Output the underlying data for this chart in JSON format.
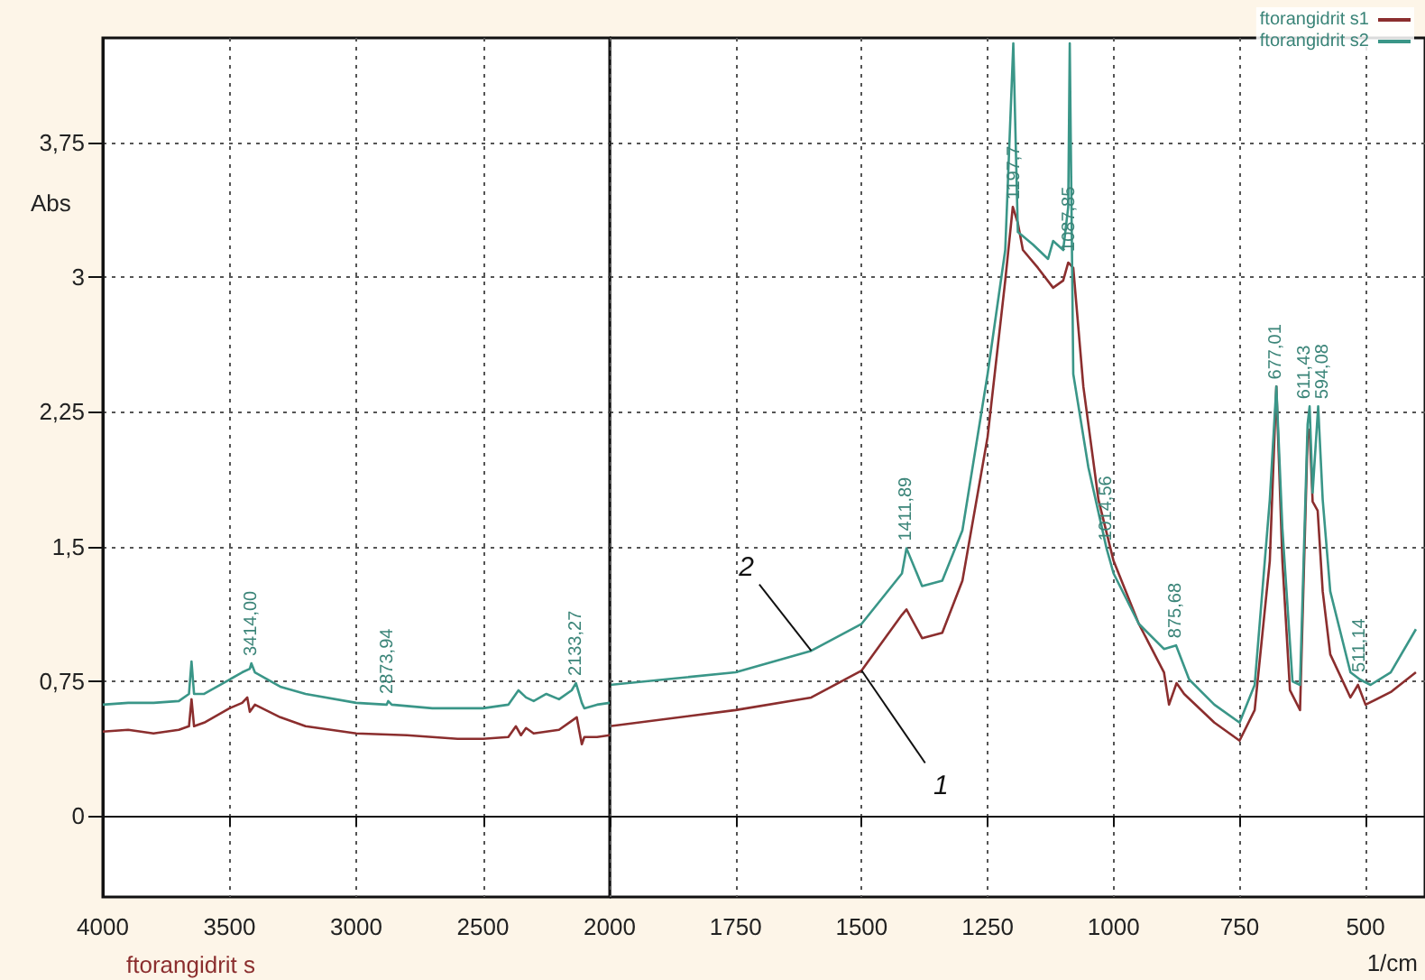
{
  "chart_data": [
    {
      "type": "line",
      "ylabel": "Abs",
      "xlim": [
        4000,
        2000
      ],
      "xticks": [
        4000,
        3500,
        3000,
        2500,
        2000
      ],
      "ylim": [
        -0.45,
        4.33
      ],
      "yticks": [
        {
          "value": 0,
          "label": "0"
        },
        {
          "value": 0.75,
          "label": "0,75"
        },
        {
          "value": 1.5,
          "label": "1,5"
        },
        {
          "value": 2.25,
          "label": "2,25"
        },
        {
          "value": 3,
          "label": "3"
        },
        {
          "value": 3.75,
          "label": "3,75"
        }
      ],
      "grid": true,
      "series": [
        {
          "color": "#8b2e2e",
          "x": [
            4000,
            3900,
            3800,
            3700,
            3660,
            3650,
            3640,
            3600,
            3500,
            3450,
            3430,
            3420,
            3400,
            3300,
            3200,
            3000,
            2800,
            2600,
            2500,
            2400,
            2370,
            2350,
            2330,
            2300,
            2250,
            2200,
            2150,
            2130,
            2110,
            2100,
            2050,
            2000
          ],
          "values": [
            0.47,
            0.48,
            0.46,
            0.48,
            0.5,
            0.65,
            0.5,
            0.52,
            0.6,
            0.63,
            0.66,
            0.58,
            0.62,
            0.55,
            0.5,
            0.46,
            0.45,
            0.43,
            0.43,
            0.44,
            0.5,
            0.45,
            0.49,
            0.46,
            0.47,
            0.48,
            0.53,
            0.55,
            0.4,
            0.44,
            0.44,
            0.45
          ]
        },
        {
          "color": "#3a9688",
          "x": [
            4000,
            3900,
            3800,
            3700,
            3660,
            3650,
            3640,
            3600,
            3500,
            3450,
            3420,
            3414,
            3400,
            3300,
            3250,
            3200,
            3000,
            2880,
            2874,
            2860,
            2700,
            2500,
            2400,
            2360,
            2330,
            2300,
            2250,
            2200,
            2150,
            2133,
            2110,
            2100,
            2050,
            2000
          ],
          "values": [
            0.62,
            0.63,
            0.63,
            0.64,
            0.68,
            0.86,
            0.68,
            0.68,
            0.76,
            0.8,
            0.82,
            0.85,
            0.8,
            0.72,
            0.7,
            0.68,
            0.63,
            0.62,
            0.64,
            0.62,
            0.6,
            0.6,
            0.62,
            0.7,
            0.66,
            0.64,
            0.68,
            0.65,
            0.7,
            0.74,
            0.63,
            0.6,
            0.62,
            0.63
          ]
        }
      ],
      "annotations": [
        {
          "text": "3414,00",
          "x": 3414,
          "y": 0.85
        },
        {
          "text": "2873,94",
          "x": 2874,
          "y": 0.64
        },
        {
          "text": "2133,27",
          "x": 2133,
          "y": 0.74
        },
        "ftorangidrit s"
      ]
    },
    {
      "type": "line",
      "xlabel": "1/cm",
      "xlim": [
        2000,
        382
      ],
      "xticks": [
        1750,
        1500,
        1250,
        1000,
        750,
        500
      ],
      "ylim": [
        -0.45,
        4.33
      ],
      "yticks": [
        {
          "value": 0,
          "label": null
        },
        {
          "value": 0.75,
          "label": null
        },
        {
          "value": 1.5,
          "label": null
        },
        {
          "value": 2.25,
          "label": null
        },
        {
          "value": 3,
          "label": null
        },
        {
          "value": 3.75,
          "label": null
        }
      ],
      "grid": true,
      "tick_labels": "x",
      "legend": "top right",
      "series": [
        {
          "name": "ftorangidrit s1",
          "color": "#8b2e2e",
          "x": [
            2000,
            1750,
            1600,
            1500,
            1420,
            1411,
            1380,
            1340,
            1300,
            1250,
            1215,
            1200,
            1190,
            1180,
            1150,
            1120,
            1100,
            1090,
            1080,
            1060,
            1030,
            1000,
            950,
            900,
            890,
            875,
            860,
            800,
            750,
            720,
            690,
            677,
            665,
            650,
            630,
            615,
            611,
            605,
            595,
            585,
            570,
            530,
            515,
            500,
            450,
            400
          ],
          "values": [
            0.5,
            0.59,
            0.66,
            0.81,
            1.12,
            1.15,
            0.99,
            1.02,
            1.31,
            2.11,
            2.98,
            3.39,
            3.3,
            3.15,
            3.05,
            2.94,
            2.98,
            3.08,
            3.05,
            2.39,
            1.76,
            1.42,
            1.07,
            0.8,
            0.62,
            0.74,
            0.68,
            0.52,
            0.42,
            0.59,
            1.42,
            2.39,
            1.42,
            0.7,
            0.59,
            2.11,
            2.15,
            1.75,
            1.7,
            1.25,
            0.9,
            0.66,
            0.73,
            0.62,
            0.69,
            0.8
          ]
        },
        {
          "name": "ftorangidrit s2",
          "color": "#3a9688",
          "x": [
            2000,
            1750,
            1600,
            1500,
            1420,
            1411,
            1380,
            1340,
            1300,
            1250,
            1215,
            1199,
            1190,
            1160,
            1130,
            1120,
            1100,
            1090,
            1087,
            1080,
            1050,
            1014,
            1000,
            950,
            900,
            876,
            850,
            800,
            750,
            720,
            690,
            677,
            665,
            645,
            630,
            615,
            611,
            605,
            594,
            585,
            570,
            530,
            511,
            490,
            450,
            400
          ],
          "values": [
            0.73,
            0.8,
            0.92,
            1.07,
            1.35,
            1.49,
            1.28,
            1.31,
            1.59,
            2.46,
            3.15,
            4.3,
            3.25,
            3.18,
            3.1,
            3.2,
            3.15,
            3.39,
            4.3,
            2.46,
            1.94,
            1.49,
            1.35,
            1.07,
            0.93,
            0.95,
            0.76,
            0.62,
            0.52,
            0.73,
            1.76,
            2.39,
            1.6,
            0.75,
            0.73,
            2.18,
            2.28,
            1.8,
            2.28,
            1.76,
            1.25,
            0.8,
            0.76,
            0.73,
            0.8,
            1.04
          ]
        }
      ],
      "annotations": [
        {
          "text": "2",
          "x": 1600,
          "y": 0.92
        },
        {
          "text": "1",
          "x": 1500,
          "y": 0.81
        },
        {
          "text": "1411,89",
          "x": 1411,
          "y": 1.49
        },
        {
          "text": "1197,7",
          "x": 1197,
          "y": 3.39
        },
        {
          "text": "1087,85",
          "x": 1087,
          "y": 3.1
        },
        {
          "text": "1014,56",
          "x": 1014,
          "y": 1.49
        },
        {
          "text": "875,68",
          "x": 876,
          "y": 0.95
        },
        {
          "text": "677,01",
          "x": 677,
          "y": 2.39
        },
        {
          "text": "611,43",
          "x": 620,
          "y": 2.28
        },
        {
          "text": "594,08",
          "x": 585,
          "y": 2.28
        },
        {
          "text": "511,14",
          "x": 511,
          "y": 0.76
        }
      ]
    }
  ]
}
